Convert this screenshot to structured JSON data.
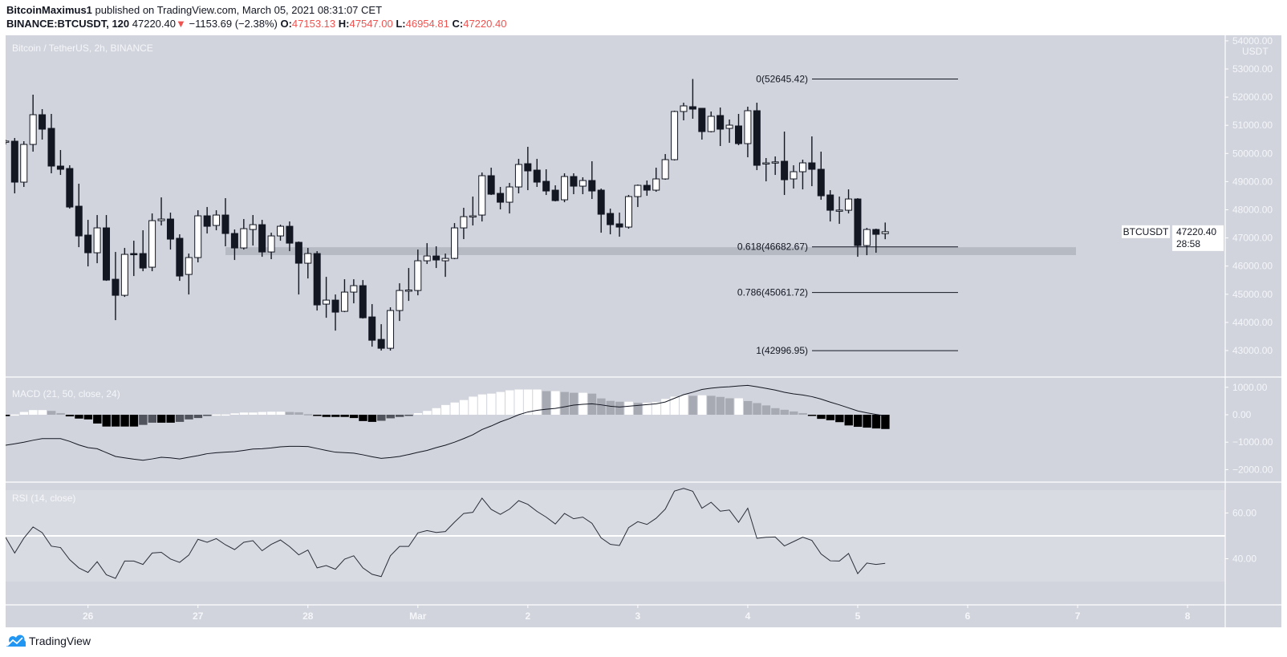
{
  "header": {
    "author": "BitcoinMaximus1",
    "published": "published on TradingView.com, March 05, 2021 08:31:07 CET",
    "symbol": "BINANCE:BTCUSDT, 120",
    "last": "47220.40",
    "change": "−1153.69 (−2.38%)",
    "o_label": "O:",
    "o": "47153.13",
    "h_label": "H:",
    "h": "47547.00",
    "l_label": "L:",
    "l": "46954.81",
    "c_label": "C:",
    "c": "47220.40",
    "down_color": "#ef5350"
  },
  "panes": {
    "main_label": "Bitcoin / TetherUS, 2h, BINANCE",
    "macd_label": "MACD (21, 50, close, 24)",
    "rsi_label": "RSI (14, close)"
  },
  "price_axis": {
    "unit": "USDT",
    "ticks": [
      "54000.00",
      "53000.00",
      "52000.00",
      "51000.00",
      "50000.00",
      "49000.00",
      "48000.00",
      "47000.00",
      "46000.00",
      "45000.00",
      "44000.00",
      "43000.00"
    ],
    "symbol_tag": "BTCUSDT",
    "last_price_tag": "47220.40",
    "countdown": "28:58"
  },
  "macd_axis": {
    "ticks": [
      "1000.00",
      "0.00",
      "−1000.00",
      "−2000.00"
    ],
    "values": [
      1000,
      0,
      -1000,
      -2000
    ]
  },
  "rsi_axis": {
    "ticks": [
      "60.00",
      "40.00"
    ],
    "values": [
      60,
      40
    ]
  },
  "time_axis": {
    "ticks": [
      "26",
      "27",
      "28",
      "Mar",
      "2",
      "3",
      "4",
      "5",
      "6",
      "7",
      "8"
    ]
  },
  "branding": {
    "logo_text": "TradingView",
    "logo_color": "#2196f3"
  },
  "chart_data": {
    "type": "candlestick",
    "interval": "2h",
    "ylim": [
      42500,
      54000
    ],
    "colors": {
      "up": "#ffffff",
      "down": "#131722",
      "border": "#131722"
    },
    "candles_ohlc": [
      [
        50440,
        50490,
        50320,
        50440
      ],
      [
        50435,
        50549,
        48583,
        48982
      ],
      [
        48982,
        50435,
        48811,
        50321
      ],
      [
        50321,
        52088,
        50065,
        51376
      ],
      [
        51376,
        51575,
        50492,
        50863
      ],
      [
        50891,
        51404,
        49295,
        49552
      ],
      [
        49552,
        50122,
        49238,
        49438
      ],
      [
        49466,
        49580,
        48041,
        48098
      ],
      [
        48127,
        48925,
        46673,
        47072
      ],
      [
        47101,
        47642,
        45989,
        46474
      ],
      [
        46474,
        47813,
        46103,
        47357
      ],
      [
        47357,
        47813,
        45476,
        45504
      ],
      [
        45533,
        46502,
        44080,
        44963
      ],
      [
        44963,
        46645,
        44906,
        46417
      ],
      [
        46445,
        46901,
        45647,
        46417
      ],
      [
        46445,
        47272,
        45818,
        45932
      ],
      [
        45961,
        47870,
        45818,
        47614
      ],
      [
        47614,
        48440,
        47443,
        47671
      ],
      [
        47671,
        47899,
        46587,
        46958
      ],
      [
        46987,
        47129,
        45476,
        45647
      ],
      [
        45704,
        46445,
        44992,
        46303
      ],
      [
        46303,
        47984,
        46132,
        47785
      ],
      [
        47785,
        48098,
        47158,
        47414
      ],
      [
        47443,
        47984,
        47272,
        47813
      ],
      [
        47813,
        48412,
        46702,
        47158
      ],
      [
        47158,
        47300,
        46217,
        46645
      ],
      [
        46645,
        47671,
        46587,
        47329
      ],
      [
        47300,
        47813,
        46730,
        47471
      ],
      [
        47471,
        47642,
        46331,
        46502
      ],
      [
        46502,
        47186,
        46246,
        47072
      ],
      [
        47072,
        47471,
        46901,
        47414
      ],
      [
        47414,
        47585,
        46531,
        46815
      ],
      [
        46844,
        46873,
        44992,
        46103
      ],
      [
        46103,
        46645,
        45561,
        46445
      ],
      [
        46445,
        46531,
        44422,
        44621
      ],
      [
        44650,
        45618,
        44165,
        44792
      ],
      [
        44792,
        44992,
        43709,
        44365
      ],
      [
        44394,
        45533,
        44365,
        45077
      ],
      [
        45077,
        45533,
        44678,
        45305
      ],
      [
        45305,
        45504,
        44137,
        44165
      ],
      [
        44194,
        44650,
        43139,
        43367
      ],
      [
        43396,
        43937,
        43000,
        43082
      ],
      [
        43082,
        44536,
        43000,
        44422
      ],
      [
        44422,
        45390,
        44051,
        45134
      ],
      [
        45134,
        45932,
        44764,
        45150
      ],
      [
        45134,
        46587,
        44963,
        46189
      ],
      [
        46189,
        46815,
        46075,
        46360
      ],
      [
        46360,
        46702,
        45932,
        46217
      ],
      [
        46189,
        46445,
        45618,
        46274
      ],
      [
        46274,
        47528,
        46246,
        47357
      ],
      [
        47357,
        48070,
        46958,
        47756
      ],
      [
        47756,
        48469,
        47443,
        47785
      ],
      [
        47813,
        49324,
        47585,
        49210
      ],
      [
        49210,
        49495,
        48526,
        48554
      ],
      [
        48583,
        48811,
        48013,
        48269
      ],
      [
        48269,
        48953,
        47870,
        48811
      ],
      [
        48811,
        49808,
        48583,
        49609
      ],
      [
        49637,
        50236,
        48697,
        49381
      ],
      [
        49409,
        49808,
        48811,
        48982
      ],
      [
        49010,
        49438,
        48526,
        48668
      ],
      [
        48697,
        48868,
        48298,
        48326
      ],
      [
        48355,
        49295,
        48269,
        49181
      ],
      [
        49181,
        49295,
        48554,
        48839
      ],
      [
        48839,
        49153,
        48554,
        49039
      ],
      [
        49039,
        49723,
        48383,
        48668
      ],
      [
        48697,
        48754,
        47186,
        47842
      ],
      [
        47870,
        48041,
        47129,
        47471
      ],
      [
        47500,
        47899,
        47044,
        47386
      ],
      [
        47386,
        48526,
        47329,
        48469
      ],
      [
        48469,
        48896,
        48098,
        48868
      ],
      [
        48868,
        49039,
        48497,
        48697
      ],
      [
        48697,
        49495,
        48640,
        49096
      ],
      [
        49096,
        49979,
        49067,
        49780
      ],
      [
        49780,
        51518,
        49751,
        51490
      ],
      [
        51490,
        51803,
        51176,
        51689
      ],
      [
        51661,
        52645,
        51233,
        51575
      ],
      [
        51604,
        51604,
        50492,
        50777
      ],
      [
        50777,
        51490,
        50749,
        51319
      ],
      [
        51347,
        51632,
        50264,
        50863
      ],
      [
        50891,
        51205,
        50378,
        51005
      ],
      [
        50977,
        51404,
        50293,
        50350
      ],
      [
        50350,
        51661,
        49865,
        51518
      ],
      [
        51518,
        51803,
        49409,
        49580
      ],
      [
        49637,
        49837,
        49010,
        49666
      ],
      [
        49694,
        49894,
        49238,
        49700
      ],
      [
        49723,
        50777,
        48526,
        49067
      ],
      [
        49096,
        49580,
        48754,
        49352
      ],
      [
        49352,
        49780,
        48725,
        49666
      ],
      [
        49666,
        50606,
        48839,
        49438
      ],
      [
        49438,
        50065,
        48355,
        48497
      ],
      [
        48526,
        48697,
        47585,
        47984
      ],
      [
        47984,
        48469,
        47500,
        47990
      ],
      [
        47984,
        48725,
        47870,
        48383
      ],
      [
        48383,
        48412,
        46331,
        46730
      ],
      [
        46730,
        47357,
        46388,
        47300
      ],
      [
        47300,
        47329,
        46474,
        47129
      ],
      [
        47153.13,
        47547.0,
        46954.81,
        47220.4
      ]
    ],
    "fib_levels": [
      {
        "label": "0(52645.42)",
        "price": 52645.42
      },
      {
        "label": "0.618(46682.67)",
        "price": 46682.67
      },
      {
        "label": "0.786(45061.72)",
        "price": 45061.72
      },
      {
        "label": "1(42996.95)",
        "price": 42996.95
      }
    ],
    "support_zone": {
      "price_low": 46390,
      "price_high": 46670,
      "color": "#b2b5be"
    },
    "macd": {
      "ylim": [
        -2300,
        1300
      ],
      "histogram": [
        -50,
        10,
        100,
        170,
        170,
        140,
        60,
        -60,
        -140,
        -170,
        -320,
        -430,
        -430,
        -430,
        -430,
        -370,
        -290,
        -290,
        -290,
        -260,
        -170,
        -120,
        -30,
        10,
        10,
        50,
        80,
        80,
        100,
        110,
        110,
        100,
        90,
        20,
        -20,
        -80,
        -80,
        -80,
        -120,
        -230,
        -260,
        -220,
        -130,
        -80,
        -30,
        60,
        140,
        240,
        355,
        445,
        535,
        660,
        740,
        770,
        830,
        890,
        920,
        920,
        920,
        860,
        860,
        830,
        800,
        800,
        770,
        595,
        505,
        475,
        475,
        435,
        435,
        465,
        575,
        660,
        720,
        690,
        710,
        690,
        650,
        600,
        600,
        500,
        425,
        340,
        240,
        180,
        120,
        60,
        -30,
        -150,
        -200,
        -270,
        -390,
        -440,
        -470,
        -500,
        -520
      ],
      "line": [
        -1110,
        -1060,
        -1000,
        -930,
        -870,
        -870,
        -870,
        -970,
        -1100,
        -1200,
        -1240,
        -1380,
        -1520,
        -1570,
        -1620,
        -1660,
        -1610,
        -1550,
        -1570,
        -1610,
        -1550,
        -1490,
        -1420,
        -1385,
        -1365,
        -1345,
        -1300,
        -1250,
        -1240,
        -1210,
        -1170,
        -1150,
        -1150,
        -1160,
        -1230,
        -1300,
        -1365,
        -1380,
        -1400,
        -1460,
        -1530,
        -1590,
        -1560,
        -1520,
        -1450,
        -1370,
        -1300,
        -1200,
        -1110,
        -1000,
        -870,
        -730,
        -540,
        -410,
        -260,
        -140,
        0,
        100,
        160,
        200,
        230,
        290,
        350,
        380,
        400,
        360,
        310,
        280,
        310,
        340,
        370,
        400,
        465,
        600,
        730,
        820,
        920,
        970,
        1000,
        1020,
        1050,
        1070,
        1020,
        960,
        900,
        820,
        760,
        720,
        660,
        570,
        460,
        360,
        250,
        140,
        70,
        10,
        -40
      ],
      "hist_colors": {
        "pos_rising": "#ffffff",
        "pos_falling": "#a8aab3",
        "neg_falling": "#000000",
        "neg_rising": "#50535b"
      }
    },
    "rsi": {
      "ylim": [
        30,
        70
      ],
      "band": [
        30,
        70
      ],
      "midline": 50,
      "values": [
        49.4,
        42.5,
        49,
        53.9,
        51.4,
        45.5,
        44.9,
        39.6,
        36,
        34,
        38.7,
        33,
        31.4,
        39,
        39,
        37.5,
        42.5,
        42.8,
        39.9,
        38.4,
        41.6,
        48.5,
        47.2,
        48.8,
        46.1,
        44,
        47.2,
        47.9,
        43.5,
        46.3,
        48.2,
        45.3,
        41.7,
        43.8,
        36,
        37,
        35.4,
        39.8,
        41.3,
        36,
        33.2,
        32.2,
        41.3,
        45.4,
        45.4,
        51.3,
        52.3,
        51.5,
        51.9,
        56,
        59.8,
        60.3,
        66.5,
        61.6,
        59.4,
        61.7,
        65.4,
        63.8,
        60.7,
        58.2,
        55.2,
        59.8,
        57.5,
        58.2,
        55.5,
        49.1,
        46.3,
        45.8,
        53.6,
        56.2,
        55,
        57.7,
        61.7,
        69.6,
        70.8,
        69.5,
        62.1,
        64.7,
        60.8,
        61.3,
        55.9,
        62.1,
        48.9,
        49.4,
        49.5,
        45.6,
        47.5,
        49.4,
        48,
        42.1,
        39.1,
        39,
        42.3,
        33.5,
        38.1,
        37.5,
        38
      ]
    }
  }
}
